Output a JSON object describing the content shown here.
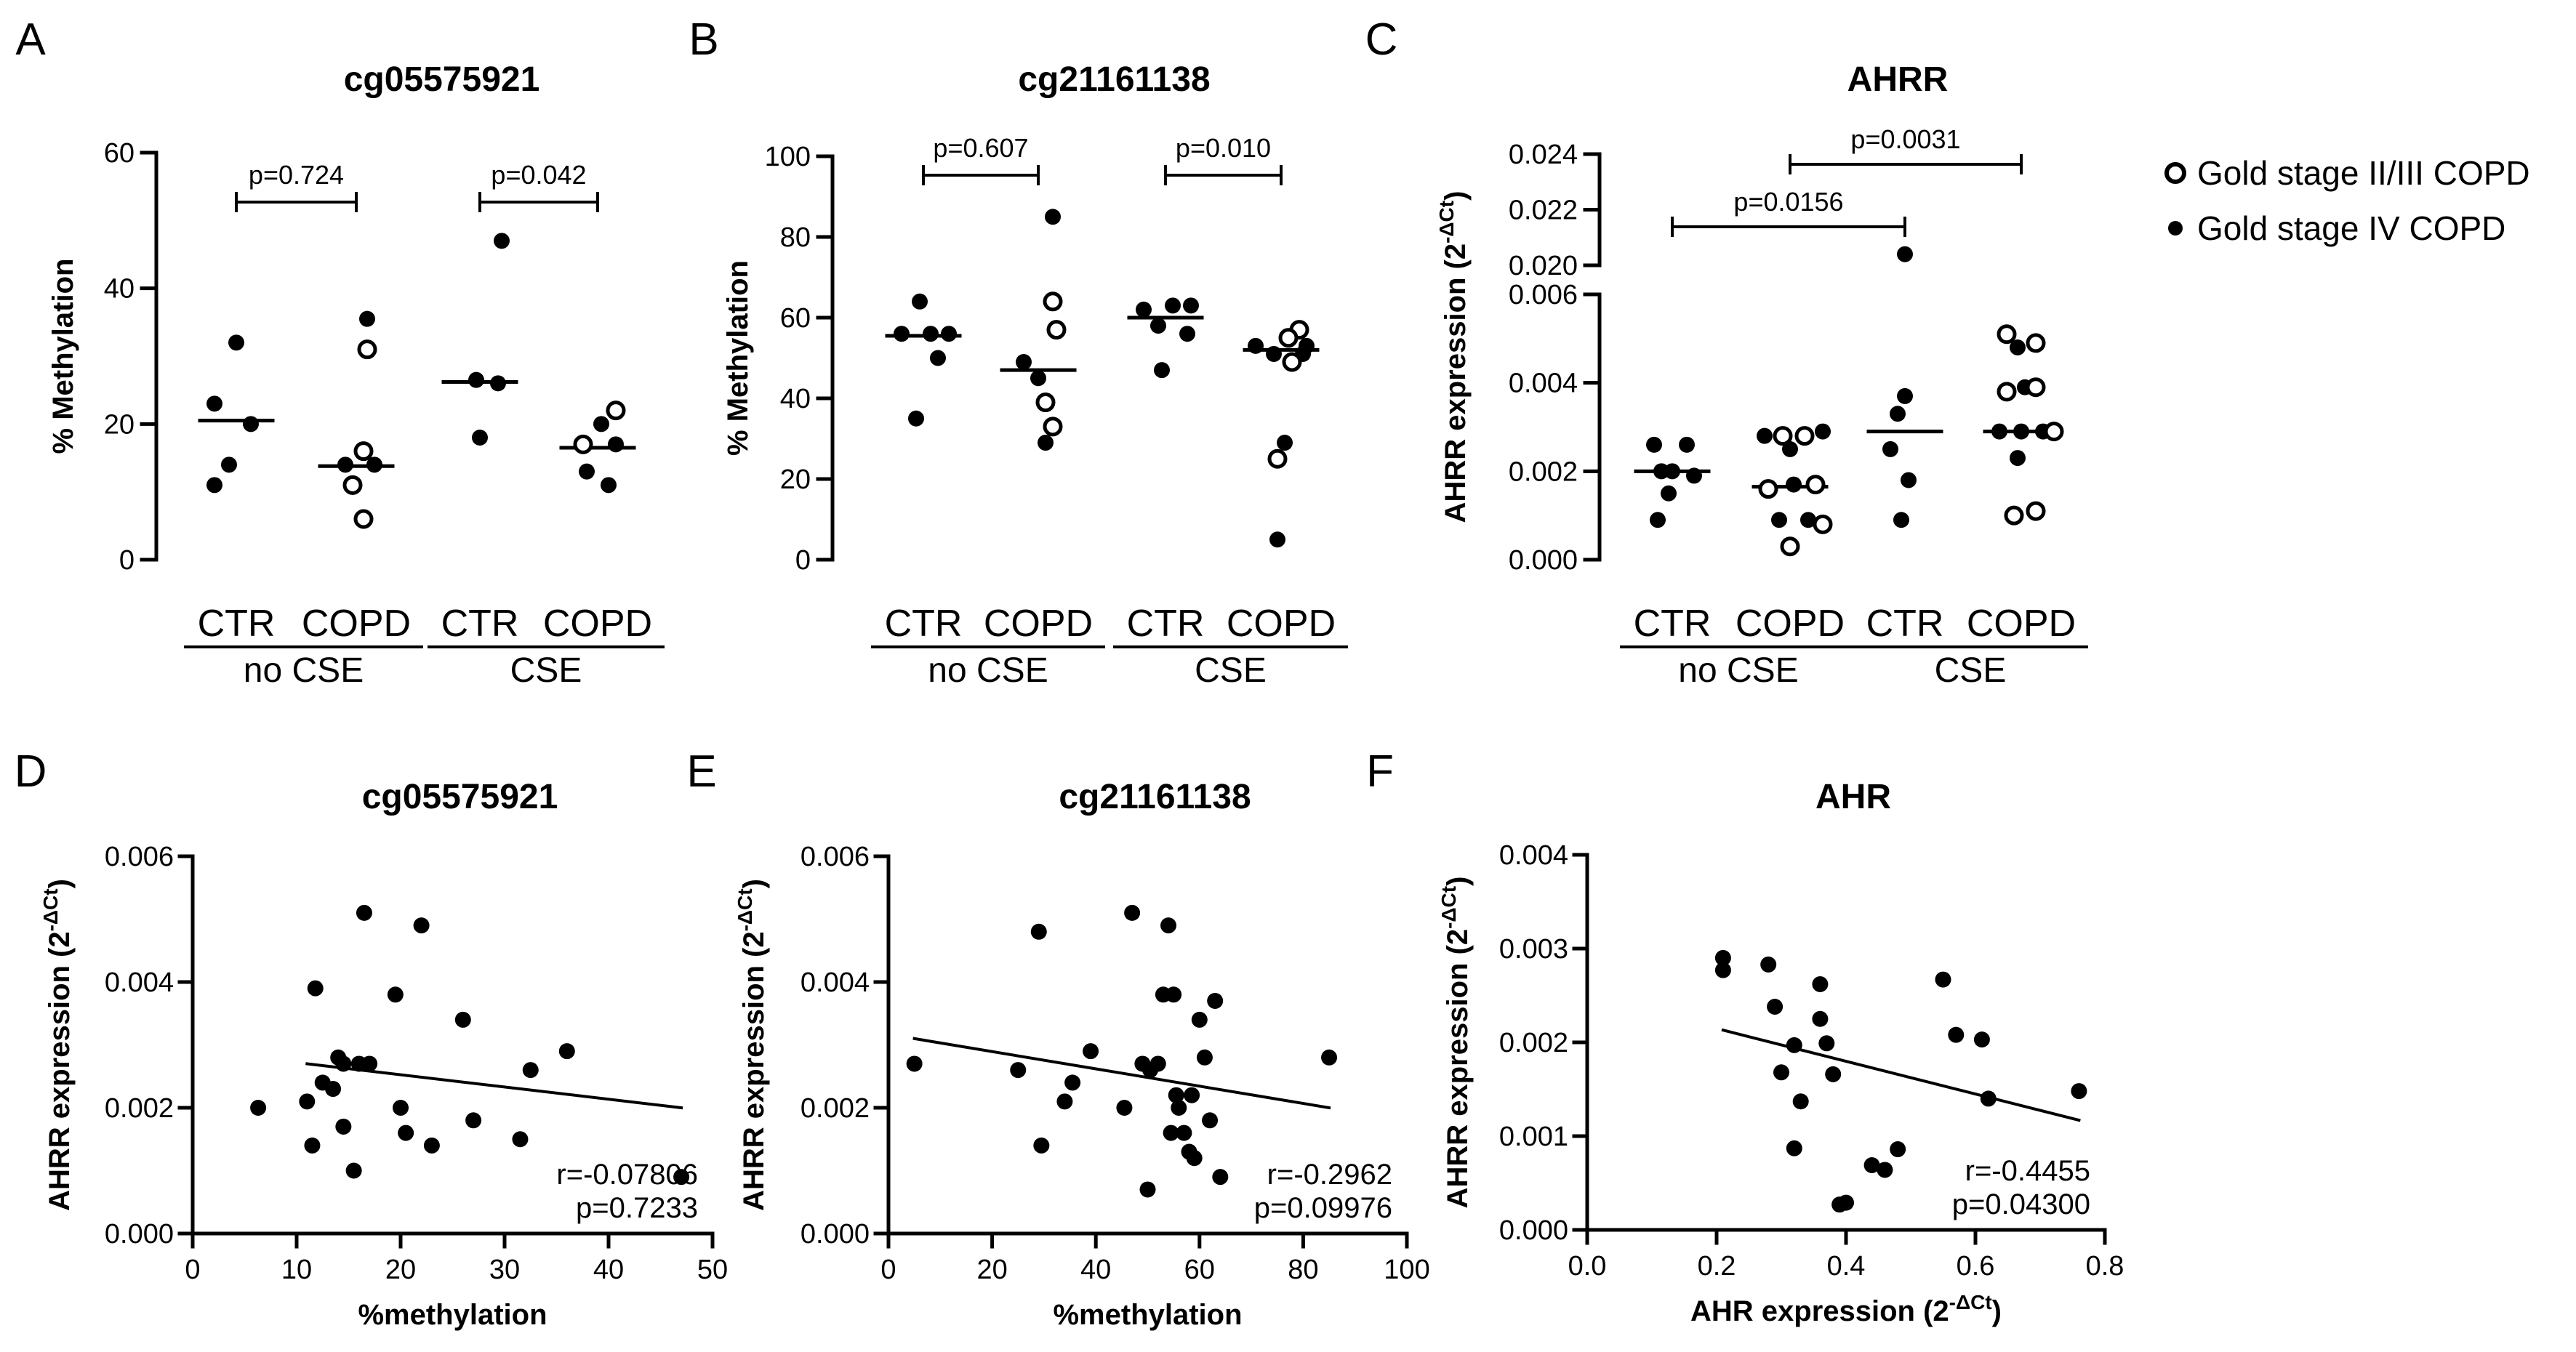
{
  "legend": [
    {
      "label": "Gold stage II/III COPD",
      "marker": "open-circle-icon"
    },
    {
      "label": "Gold stage IV COPD",
      "marker": "filled-circle-icon"
    }
  ],
  "chart_data": [
    {
      "panel": "A",
      "type": "scatter",
      "subtype": "dot-plot",
      "title": "cg05575921",
      "ylabel": "% Methylation",
      "ylim": [
        0,
        60
      ],
      "yticks": [
        0,
        20,
        40,
        60
      ],
      "groups": [
        "CTR",
        "COPD",
        "CTR",
        "COPD"
      ],
      "conditions": [
        "no CSE",
        "CSE"
      ],
      "comparisons": [
        {
          "groups": [
            0,
            1
          ],
          "label": "p=0.724"
        },
        {
          "groups": [
            2,
            3
          ],
          "label": "p=0.042"
        }
      ],
      "series": [
        {
          "name": "CTR no CSE",
          "medianLine": 20.5,
          "points": [
            {
              "dx": 0,
              "y": 32,
              "open": false
            },
            {
              "dx": -0.3,
              "y": 23,
              "open": false
            },
            {
              "dx": 0.2,
              "y": 20,
              "open": false
            },
            {
              "dx": -0.1,
              "y": 14,
              "open": false
            },
            {
              "dx": -0.3,
              "y": 11,
              "open": false
            }
          ]
        },
        {
          "name": "COPD no CSE",
          "medianLine": 13.8,
          "points": [
            {
              "dx": 0.15,
              "y": 35.5,
              "open": false
            },
            {
              "dx": 0.15,
              "y": 31,
              "open": true
            },
            {
              "dx": 0.1,
              "y": 16,
              "open": true
            },
            {
              "dx": -0.15,
              "y": 14,
              "open": false
            },
            {
              "dx": 0.25,
              "y": 14,
              "open": false
            },
            {
              "dx": -0.05,
              "y": 11,
              "open": true
            },
            {
              "dx": 0.1,
              "y": 6,
              "open": true
            }
          ]
        },
        {
          "name": "CTR CSE",
          "medianLine": 26.2,
          "points": [
            {
              "dx": 0.3,
              "y": 47,
              "open": false
            },
            {
              "dx": -0.05,
              "y": 26.5,
              "open": false
            },
            {
              "dx": 0.25,
              "y": 26,
              "open": false
            },
            {
              "dx": 0.0,
              "y": 18,
              "open": false
            }
          ]
        },
        {
          "name": "COPD CSE",
          "medianLine": 16.5,
          "points": [
            {
              "dx": 0.25,
              "y": 22,
              "open": true
            },
            {
              "dx": 0.05,
              "y": 20,
              "open": false
            },
            {
              "dx": -0.2,
              "y": 17,
              "open": true
            },
            {
              "dx": 0.25,
              "y": 17,
              "open": false
            },
            {
              "dx": -0.15,
              "y": 13,
              "open": false
            },
            {
              "dx": 0.15,
              "y": 11,
              "open": false
            }
          ]
        }
      ]
    },
    {
      "panel": "B",
      "type": "scatter",
      "subtype": "dot-plot",
      "title": "cg21161138",
      "ylabel": "% Methylation",
      "ylim": [
        0,
        100
      ],
      "yticks": [
        0,
        20,
        40,
        60,
        80,
        100
      ],
      "groups": [
        "CTR",
        "COPD",
        "CTR",
        "COPD"
      ],
      "conditions": [
        "no CSE",
        "CSE"
      ],
      "comparisons": [
        {
          "groups": [
            0,
            1
          ],
          "label": "p=0.607"
        },
        {
          "groups": [
            2,
            3
          ],
          "label": "p=0.010"
        }
      ],
      "series": [
        {
          "name": "CTR no CSE",
          "medianLine": 55.5,
          "points": [
            {
              "dx": -0.05,
              "y": 64,
              "open": false
            },
            {
              "dx": -0.3,
              "y": 56,
              "open": false
            },
            {
              "dx": 0.1,
              "y": 56,
              "open": false
            },
            {
              "dx": 0.35,
              "y": 56,
              "open": false
            },
            {
              "dx": 0.2,
              "y": 50,
              "open": false
            },
            {
              "dx": -0.1,
              "y": 35,
              "open": false
            }
          ]
        },
        {
          "name": "COPD no CSE",
          "medianLine": 47,
          "points": [
            {
              "dx": 0.2,
              "y": 85,
              "open": false
            },
            {
              "dx": 0.2,
              "y": 64,
              "open": true
            },
            {
              "dx": 0.25,
              "y": 57,
              "open": true
            },
            {
              "dx": -0.2,
              "y": 49,
              "open": false
            },
            {
              "dx": 0.0,
              "y": 45,
              "open": false
            },
            {
              "dx": 0.1,
              "y": 39,
              "open": true
            },
            {
              "dx": 0.2,
              "y": 33,
              "open": true
            },
            {
              "dx": 0.1,
              "y": 29,
              "open": false
            }
          ]
        },
        {
          "name": "CTR CSE",
          "medianLine": 60,
          "points": [
            {
              "dx": -0.3,
              "y": 62,
              "open": false
            },
            {
              "dx": 0.1,
              "y": 63,
              "open": false
            },
            {
              "dx": 0.35,
              "y": 63,
              "open": false
            },
            {
              "dx": -0.1,
              "y": 58,
              "open": false
            },
            {
              "dx": 0.3,
              "y": 56,
              "open": false
            },
            {
              "dx": -0.05,
              "y": 47,
              "open": false
            }
          ]
        },
        {
          "name": "COPD CSE",
          "medianLine": 52,
          "points": [
            {
              "dx": 0.25,
              "y": 57,
              "open": true
            },
            {
              "dx": 0.1,
              "y": 55,
              "open": true
            },
            {
              "dx": -0.35,
              "y": 53,
              "open": false
            },
            {
              "dx": 0.35,
              "y": 53,
              "open": false
            },
            {
              "dx": -0.1,
              "y": 51,
              "open": false
            },
            {
              "dx": 0.3,
              "y": 51,
              "open": false
            },
            {
              "dx": 0.15,
              "y": 49,
              "open": true
            },
            {
              "dx": 0.05,
              "y": 29,
              "open": false
            },
            {
              "dx": -0.05,
              "y": 25,
              "open": true
            },
            {
              "dx": -0.05,
              "y": 5,
              "open": false
            }
          ]
        }
      ]
    },
    {
      "panel": "C",
      "type": "scatter",
      "subtype": "dot-plot-broken-axis",
      "title": "AHRR",
      "ylabel": "AHRR expression (2⁻ΔCt)",
      "ylabel_main": "AHRR expression",
      "ylabel_paren": "(2",
      "ylabel_sup": "-ΔCt",
      "ylabel_close": ")",
      "ylim_lower": [
        0,
        0.006
      ],
      "ylim_upper": [
        0.02,
        0.024
      ],
      "yticks_lower": [
        "0.000",
        "0.002",
        "0.004",
        "0.006"
      ],
      "yticks_upper": [
        "0.020",
        "0.022",
        "0.024"
      ],
      "groups": [
        "CTR",
        "COPD",
        "CTR",
        "COPD"
      ],
      "conditions": [
        "no CSE",
        "CSE"
      ],
      "comparisons": [
        {
          "groups": [
            0,
            2
          ],
          "label": "p=0.0156"
        },
        {
          "groups": [
            1,
            3
          ],
          "label": "p=0.0031"
        }
      ],
      "series": [
        {
          "name": "CTR no CSE",
          "medianLine": 0.002,
          "points": [
            {
              "dx": -0.25,
              "y": 0.0026,
              "open": false
            },
            {
              "dx": 0.2,
              "y": 0.0026,
              "open": false
            },
            {
              "dx": -0.15,
              "y": 0.002,
              "open": false
            },
            {
              "dx": 0.0,
              "y": 0.002,
              "open": false
            },
            {
              "dx": 0.3,
              "y": 0.0019,
              "open": false
            },
            {
              "dx": -0.05,
              "y": 0.0015,
              "open": false
            },
            {
              "dx": -0.2,
              "y": 0.0009,
              "open": false
            }
          ]
        },
        {
          "name": "COPD no CSE",
          "medianLine": 0.00165,
          "points": [
            {
              "dx": -0.35,
              "y": 0.0028,
              "open": false
            },
            {
              "dx": -0.1,
              "y": 0.0028,
              "open": true
            },
            {
              "dx": 0.2,
              "y": 0.0028,
              "open": true
            },
            {
              "dx": 0.45,
              "y": 0.0029,
              "open": false
            },
            {
              "dx": 0.0,
              "y": 0.0025,
              "open": false
            },
            {
              "dx": -0.3,
              "y": 0.0016,
              "open": true
            },
            {
              "dx": 0.05,
              "y": 0.0017,
              "open": false
            },
            {
              "dx": 0.35,
              "y": 0.0017,
              "open": true
            },
            {
              "dx": -0.15,
              "y": 0.0009,
              "open": false
            },
            {
              "dx": 0.25,
              "y": 0.0009,
              "open": false
            },
            {
              "dx": 0.45,
              "y": 0.0008,
              "open": true
            },
            {
              "dx": 0.0,
              "y": 0.0003,
              "open": true
            }
          ]
        },
        {
          "name": "CTR CSE",
          "medianLine": 0.0029,
          "points": [
            {
              "dx": 0.0,
              "y": 0.0204,
              "open": false
            },
            {
              "dx": 0.0,
              "y": 0.0037,
              "open": false
            },
            {
              "dx": -0.1,
              "y": 0.0033,
              "open": false
            },
            {
              "dx": -0.2,
              "y": 0.0025,
              "open": false
            },
            {
              "dx": 0.05,
              "y": 0.0018,
              "open": false
            },
            {
              "dx": -0.05,
              "y": 0.0009,
              "open": false
            }
          ]
        },
        {
          "name": "COPD CSE",
          "medianLine": 0.0029,
          "points": [
            {
              "dx": -0.2,
              "y": 0.0051,
              "open": true
            },
            {
              "dx": 0.2,
              "y": 0.0049,
              "open": true
            },
            {
              "dx": -0.05,
              "y": 0.0048,
              "open": false
            },
            {
              "dx": -0.2,
              "y": 0.0038,
              "open": true
            },
            {
              "dx": 0.05,
              "y": 0.0039,
              "open": false
            },
            {
              "dx": 0.2,
              "y": 0.0039,
              "open": true
            },
            {
              "dx": -0.3,
              "y": 0.0029,
              "open": false
            },
            {
              "dx": 0.0,
              "y": 0.0029,
              "open": false
            },
            {
              "dx": 0.3,
              "y": 0.0029,
              "open": false
            },
            {
              "dx": 0.45,
              "y": 0.0029,
              "open": true
            },
            {
              "dx": -0.05,
              "y": 0.0023,
              "open": false
            },
            {
              "dx": 0.2,
              "y": 0.0011,
              "open": true
            },
            {
              "dx": -0.1,
              "y": 0.001,
              "open": true
            }
          ]
        }
      ]
    },
    {
      "panel": "D",
      "type": "scatter",
      "title": "cg05575921",
      "xlabel": "%methylation",
      "ylabel_main": "AHRR expression",
      "ylabel_paren": "(2",
      "ylabel_sup": "-ΔCt",
      "ylabel_close": ")",
      "xlim": [
        0,
        50
      ],
      "ylim": [
        0,
        0.006
      ],
      "xticks": [
        "0",
        "10",
        "20",
        "30",
        "40",
        "50"
      ],
      "yticks": [
        "0.000",
        "0.002",
        "0.004",
        "0.006"
      ],
      "r": "r=-0.07806",
      "p": "p=0.7233",
      "regression": {
        "x": [
          11,
          47
        ],
        "y": [
          0.0027,
          0.002
        ]
      },
      "x": [
        6.3,
        11,
        11.5,
        11.8,
        12.5,
        13.5,
        14,
        14.5,
        14.5,
        15.5,
        16,
        16.5,
        17,
        19.5,
        20,
        20.5,
        22,
        23,
        26,
        27,
        31.5,
        32.5,
        36,
        47
      ],
      "y": [
        0.002,
        0.0021,
        0.0014,
        0.0039,
        0.0024,
        0.0023,
        0.0028,
        0.0017,
        0.0027,
        0.001,
        0.0027,
        0.0051,
        0.0027,
        0.0038,
        0.002,
        0.0016,
        0.0049,
        0.0014,
        0.0034,
        0.0018,
        0.0015,
        0.0026,
        0.0029,
        0.0009
      ]
    },
    {
      "panel": "E",
      "type": "scatter",
      "title": "cg21161138",
      "xlabel": "%methylation",
      "ylabel_main": "AHRR expression",
      "ylabel_paren": "(2",
      "ylabel_sup": "-ΔCt",
      "ylabel_close": ")",
      "xlim": [
        0,
        100
      ],
      "ylim": [
        0,
        0.006
      ],
      "xticks": [
        "0",
        "20",
        "40",
        "60",
        "80",
        "100"
      ],
      "yticks": [
        "0.000",
        "0.002",
        "0.004",
        "0.006"
      ],
      "r": "r=-0.2962",
      "p": "p=0.09976",
      "regression": {
        "x": [
          5,
          85
        ],
        "y": [
          0.0031,
          0.002
        ]
      },
      "x": [
        5,
        25,
        29,
        29.5,
        34,
        35.5,
        39,
        45.5,
        47,
        49,
        50,
        50.5,
        52,
        53,
        54,
        54.5,
        55,
        55.5,
        56,
        57,
        58,
        58.5,
        59,
        60,
        61,
        62,
        63,
        64,
        85
      ],
      "y": [
        0.0027,
        0.0026,
        0.0048,
        0.0014,
        0.0021,
        0.0024,
        0.0029,
        0.002,
        0.0051,
        0.0027,
        0.0007,
        0.0026,
        0.0027,
        0.0038,
        0.0049,
        0.0016,
        0.0038,
        0.0022,
        0.002,
        0.0016,
        0.0013,
        0.0022,
        0.0012,
        0.0034,
        0.0028,
        0.0018,
        0.0037,
        0.0009,
        0.0028
      ]
    },
    {
      "panel": "F",
      "type": "scatter",
      "title": "AHR",
      "xlabel_main": "AHR expression",
      "xlabel_paren": "(2",
      "xlabel_sup": "-ΔCt",
      "xlabel_close": ")",
      "ylabel_main": "AHRR expression",
      "ylabel_paren": "(2",
      "ylabel_sup": "-ΔCt",
      "ylabel_close": ")",
      "xlim": [
        0,
        0.8
      ],
      "ylim": [
        0,
        0.004
      ],
      "xticks": [
        "0.0",
        "0.2",
        "0.4",
        "0.6",
        "0.8"
      ],
      "yticks": [
        "0.000",
        "0.001",
        "0.002",
        "0.003",
        "0.004"
      ],
      "r": "r=-0.4455",
      "p": "p=0.04300",
      "regression": {
        "x": [
          0.21,
          0.76
        ],
        "y": [
          0.00213,
          0.00117
        ]
      },
      "x": [
        0.21,
        0.21,
        0.28,
        0.29,
        0.3,
        0.32,
        0.32,
        0.33,
        0.36,
        0.36,
        0.37,
        0.38,
        0.39,
        0.4,
        0.44,
        0.46,
        0.48,
        0.55,
        0.57,
        0.61,
        0.62,
        0.76
      ],
      "y": [
        0.0029,
        0.00277,
        0.00283,
        0.00238,
        0.00168,
        0.00197,
        0.00087,
        0.00137,
        0.00262,
        0.00225,
        0.00199,
        0.00166,
        0.00027,
        0.00029,
        0.00069,
        0.00064,
        0.00086,
        0.00267,
        0.00208,
        0.00203,
        0.0014,
        0.00148
      ]
    }
  ]
}
